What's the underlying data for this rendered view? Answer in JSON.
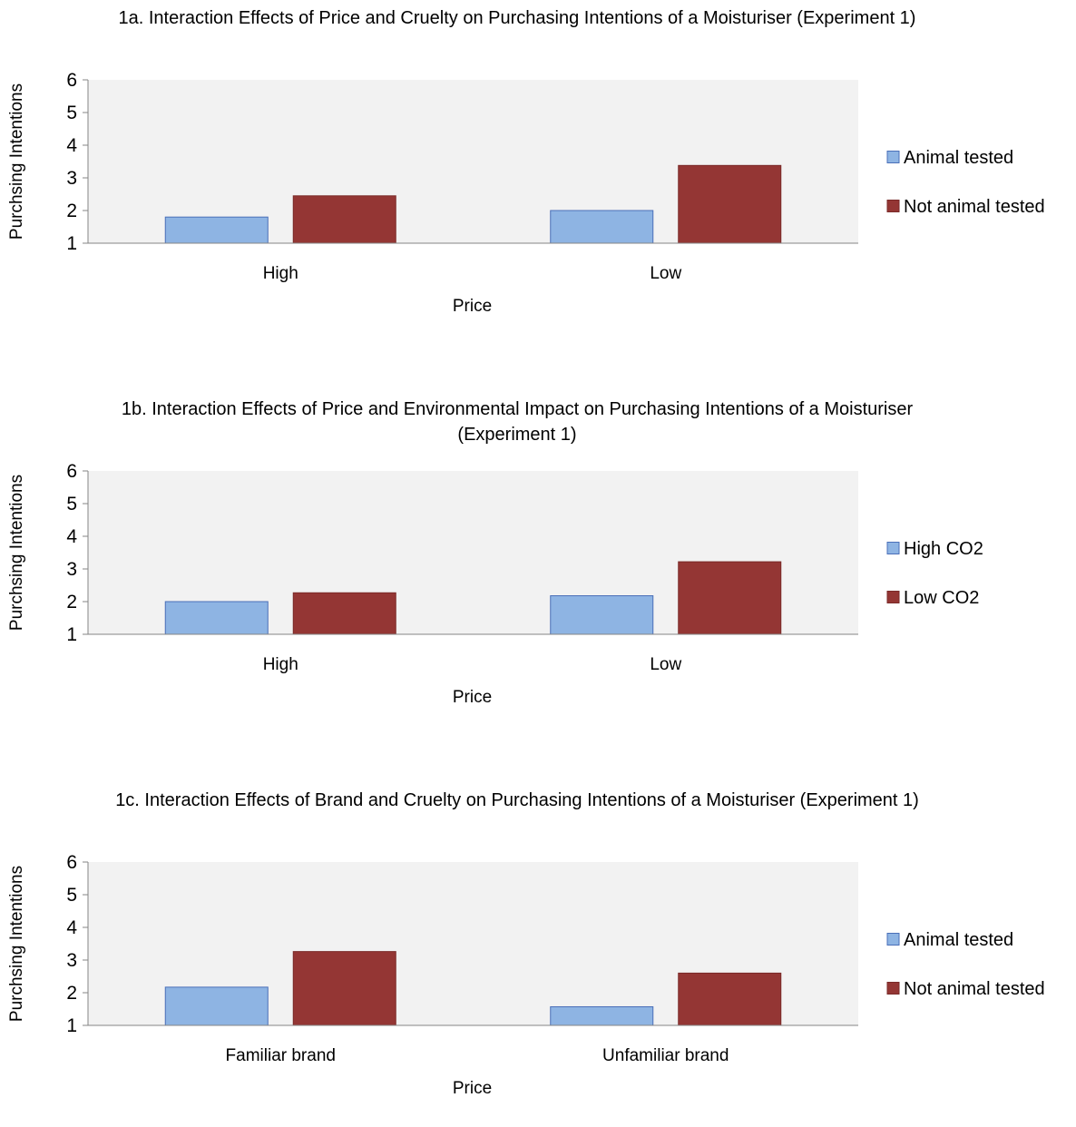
{
  "charts": [
    {
      "title": "1a. Interaction Effects of Price and Cruelty on Purchasing Intentions of a Moisturiser (Experiment 1)",
      "chart_data": {
        "type": "bar",
        "title": "1a. Interaction Effects of Price and Cruelty on Purchasing Intentions of a Moisturiser (Experiment 1)",
        "xlabel": "Price",
        "ylabel": "Purchsing Intentions",
        "categories": [
          "High",
          "Low"
        ],
        "series": [
          {
            "name": "Animal tested",
            "values": [
              1.8,
              2.0
            ],
            "color": "#8EB4E3"
          },
          {
            "name": "Not animal tested",
            "values": [
              2.45,
              3.38
            ],
            "color": "#943634"
          }
        ],
        "ylim": [
          1,
          6
        ],
        "yticks": [
          "1",
          "2",
          "3",
          "4",
          "5",
          "6"
        ],
        "grid": false,
        "legend": "right"
      }
    },
    {
      "title": "1b. Interaction Effects of Price and Environmental Impact on Purchasing Intentions of a Moisturiser (Experiment 1)",
      "chart_data": {
        "type": "bar",
        "title": "1b. Interaction Effects of Price and Environmental Impact on Purchasing Intentions of a Moisturiser (Experiment 1)",
        "xlabel": "Price",
        "ylabel": "Purchsing Intentions",
        "categories": [
          "High",
          "Low"
        ],
        "series": [
          {
            "name": "High CO2",
            "values": [
              2.0,
              2.18
            ],
            "color": "#8EB4E3"
          },
          {
            "name": "Low CO2",
            "values": [
              2.27,
              3.22
            ],
            "color": "#943634"
          }
        ],
        "ylim": [
          1,
          6
        ],
        "yticks": [
          "1",
          "2",
          "3",
          "4",
          "5",
          "6"
        ],
        "grid": false,
        "legend": "right"
      }
    },
    {
      "title": "1c. Interaction Effects of Brand and Cruelty on Purchasing Intentions of a Moisturiser (Experiment 1)",
      "chart_data": {
        "type": "bar",
        "title": "1c. Interaction Effects of Brand and Cruelty on Purchasing Intentions of a Moisturiser (Experiment 1)",
        "xlabel": "Price",
        "ylabel": "Purchsing Intentions",
        "categories": [
          "Familiar brand",
          "Unfamiliar brand"
        ],
        "series": [
          {
            "name": "Animal tested",
            "values": [
              2.17,
              1.57
            ],
            "color": "#8EB4E3"
          },
          {
            "name": "Not animal tested",
            "values": [
              3.26,
              2.6
            ],
            "color": "#943634"
          }
        ],
        "ylim": [
          1,
          6
        ],
        "yticks": [
          "1",
          "2",
          "3",
          "4",
          "5",
          "6"
        ],
        "grid": false,
        "legend": "right"
      }
    }
  ],
  "colors": {
    "plot_background": "#F2F2F2",
    "series_1": "#8EB4E3",
    "series_1_border": "#4A6FB8",
    "series_2": "#943634",
    "series_2_border": "#7A2A28",
    "axis": "#868686"
  }
}
